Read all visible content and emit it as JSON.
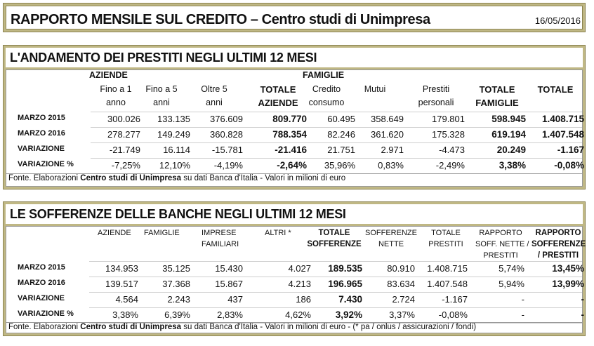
{
  "header": {
    "title": "RAPPORTO MENSILE SUL CREDITO – Centro studi di Unimpresa",
    "date": "16/05/2016"
  },
  "table1": {
    "title": "L'ANDAMENTO DEI PRESTITI NEGLI ULTIMI 12 MESI",
    "group_aziende": "AZIENDE",
    "group_famiglie": "FAMIGLIE",
    "headers": [
      [
        "Fino a 1",
        "anno"
      ],
      [
        "Fino a 5",
        "anni"
      ],
      [
        "Oltre 5",
        "anni"
      ],
      [
        "TOTALE",
        "AZIENDE"
      ],
      [
        "Credito",
        "consumo"
      ],
      [
        "Mutui",
        ""
      ],
      [
        "Prestiti",
        "personali"
      ],
      [
        "TOTALE",
        "FAMIGLIE"
      ],
      [
        "TOTALE",
        ""
      ]
    ],
    "rows": [
      {
        "label": "MARZO 2015",
        "values": [
          "300.026",
          "133.135",
          "376.609",
          "809.770",
          "60.495",
          "358.649",
          "179.801",
          "598.945",
          "1.408.715"
        ]
      },
      {
        "label": "MARZO 2016",
        "values": [
          "278.277",
          "149.249",
          "360.828",
          "788.354",
          "82.246",
          "361.620",
          "175.328",
          "619.194",
          "1.407.548"
        ]
      },
      {
        "label": "VARIAZIONE",
        "values": [
          "-21.749",
          "16.114",
          "-15.781",
          "-21.416",
          "21.751",
          "2.971",
          "-4.473",
          "20.249",
          "-1.167"
        ]
      },
      {
        "label": "VARIAZIONE %",
        "values": [
          "-7,25%",
          "12,10%",
          "-4,19%",
          "-2,64%",
          "35,96%",
          "0,83%",
          "-2,49%",
          "3,38%",
          "-0,08%"
        ]
      }
    ],
    "source_pre": "Fonte. Elaborazioni ",
    "source_bold": "Centro studi di Unimpresa",
    "source_post": " su dati Banca d'Italia - Valori in milioni di euro"
  },
  "table2": {
    "title": "LE SOFFERENZE DELLE BANCHE NEGLI ULTIMI 12 MESI",
    "headers": [
      [
        "AZIENDE"
      ],
      [
        "FAMIGLIE"
      ],
      [
        "IMPRESE",
        "FAMILIARI"
      ],
      [
        "ALTRI *"
      ],
      [
        "TOTALE",
        "SOFFERENZE"
      ],
      [
        "SOFFERENZE",
        "NETTE"
      ],
      [
        "TOTALE",
        "PRESTITI"
      ],
      [
        "RAPPORTO",
        "SOFF. NETTE /",
        "PRESTITI"
      ],
      [
        "RAPPORTO",
        "SOFFERENZE",
        "/ PRESTITI"
      ]
    ],
    "rows": [
      {
        "label": "MARZO 2015",
        "values": [
          "134.953",
          "35.125",
          "15.430",
          "4.027",
          "189.535",
          "80.910",
          "1.408.715",
          "5,74%",
          "13,45%"
        ]
      },
      {
        "label": "MARZO 2016",
        "values": [
          "139.517",
          "37.368",
          "15.867",
          "4.213",
          "196.965",
          "83.634",
          "1.407.548",
          "5,94%",
          "13,99%"
        ]
      },
      {
        "label": "VARIAZIONE",
        "values": [
          "4.564",
          "2.243",
          "437",
          "186",
          "7.430",
          "2.724",
          "-1.167",
          "-",
          "-"
        ]
      },
      {
        "label": "VARIAZIONE %",
        "values": [
          "3,38%",
          "6,39%",
          "2,83%",
          "4,62%",
          "3,92%",
          "3,37%",
          "-0,08%",
          "-",
          "-"
        ]
      }
    ],
    "source_pre": "Fonte. Elaborazioni ",
    "source_bold": "Centro studi di Unimpresa",
    "source_post": " su dati Banca d'Italia - Valori in milioni di euro - (* pa / onlus / assicurazioni / fondi)"
  }
}
